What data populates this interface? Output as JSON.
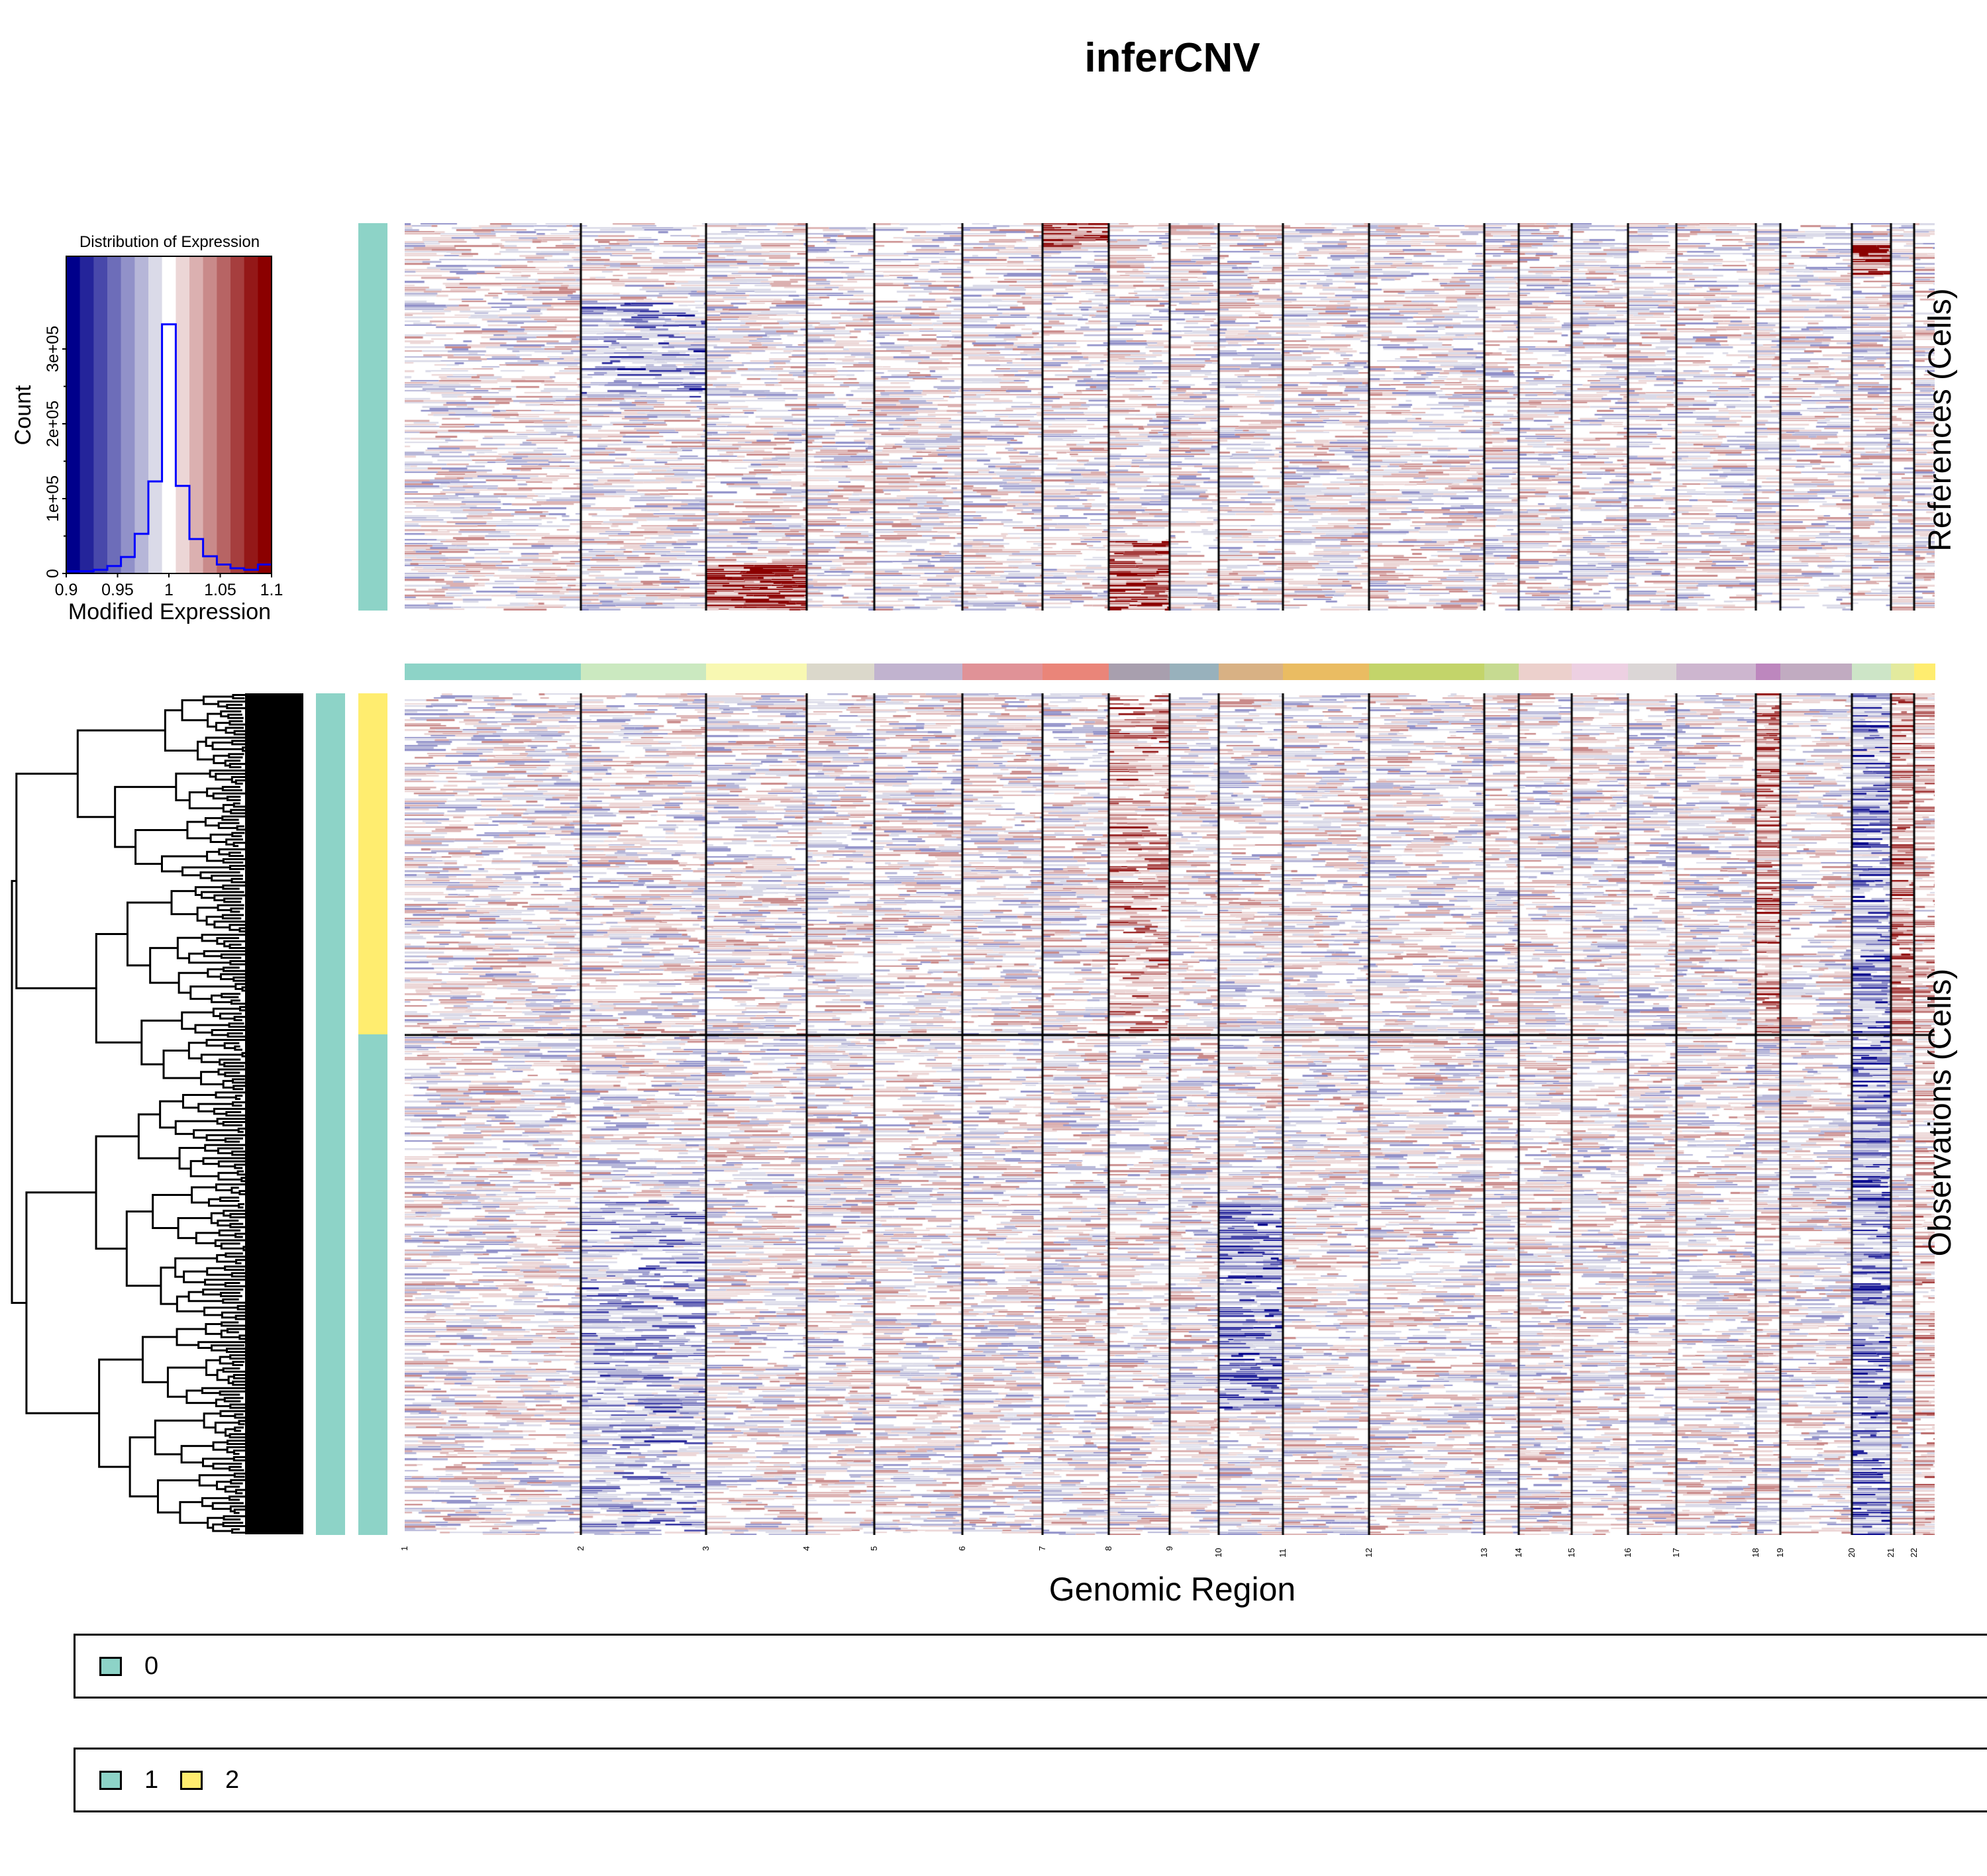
{
  "title": "inferCNV",
  "histogram": {
    "title": "Distribution of Expression",
    "xlabel": "Modified Expression",
    "ylabel": "Count",
    "xticks": [
      "0.9",
      "0.95",
      "1",
      "1.05",
      "1.1"
    ],
    "yticks": [
      "0",
      "1e+05",
      "2e+05",
      "3e+05"
    ],
    "xlim": [
      0.9,
      1.1
    ],
    "ylim": [
      0,
      350000
    ]
  },
  "chart_data": {
    "type": "heatmap",
    "title": "inferCNV",
    "xlabel": "Genomic Region",
    "ylabel_top": "References (Cells)",
    "ylabel_bottom": "Observations (Cells)",
    "chromosomes": [
      "1",
      "2",
      "3",
      "4",
      "5",
      "6",
      "7",
      "8",
      "9",
      "10",
      "11",
      "12",
      "13",
      "14",
      "15",
      "16",
      "17",
      "18",
      "19",
      "20",
      "21",
      "22"
    ],
    "chromosome_colors": [
      "#8dd3c7",
      "#cbe9c0",
      "#f8f8b2",
      "#dbd8cb",
      "#c1b3cf",
      "#e09297",
      "#ea8579",
      "#a89fae",
      "#98b1bc",
      "#d8b184",
      "#eabc62",
      "#c3d46a",
      "#c6da91",
      "#ecd0cc",
      "#edd0e2",
      "#dbd6d6",
      "#cdb6cf",
      "#bd87be",
      "#c1abc1",
      "#cde5c7",
      "#e3ea9e",
      "#ffed6f"
    ],
    "histogram": {
      "type": "bar",
      "bin_edges": [
        0.9,
        0.9133,
        0.9267,
        0.94,
        0.9533,
        0.9667,
        0.98,
        0.9933,
        1.0067,
        1.02,
        1.0333,
        1.0467,
        1.06,
        1.0733,
        1.0867,
        1.1
      ],
      "counts": [
        3000,
        3000,
        5000,
        10000,
        22000,
        53000,
        123000,
        333000,
        117000,
        46000,
        23000,
        12000,
        7000,
        5000,
        12000
      ],
      "bin_colors": [
        "#00008b",
        "#24249a",
        "#4848aa",
        "#6d6db9",
        "#9191c9",
        "#b6b6d8",
        "#dadae8",
        "#ffffff",
        "#ecd6d6",
        "#dbb0b0",
        "#c98a8a",
        "#b76464",
        "#a63e3e",
        "#941818",
        "#8b0000"
      ]
    },
    "color_scale": {
      "low": "#00008b",
      "mid": "#ffffff",
      "high": "#8b0000",
      "min": 0.9,
      "max": 1.1
    }
  },
  "references": {
    "groups": [
      {
        "label": "0",
        "color": "#8dd3c7"
      }
    ]
  },
  "observations": {
    "groups": [
      {
        "label": "2",
        "color": "#ffed6f"
      },
      {
        "label": "1",
        "color": "#8dd3c7"
      }
    ],
    "cluster_annotation": "#8dd3c7"
  },
  "legend_references": [
    {
      "label": "0",
      "color": "#8dd3c7"
    }
  ],
  "legend_observations": [
    {
      "label": "1",
      "color": "#8dd3c7"
    },
    {
      "label": "2",
      "color": "#ffed6f"
    }
  ]
}
